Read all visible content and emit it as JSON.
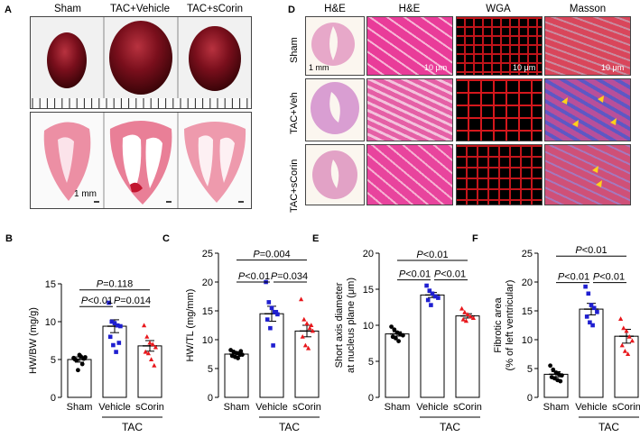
{
  "panel_a": {
    "letter": "A",
    "groups": [
      "Sham",
      "TAC+Vehicle",
      "TAC+sCorin"
    ],
    "scale_label": "1 mm"
  },
  "panel_d": {
    "letter": "D",
    "columns": [
      "H&E",
      "H&E",
      "WGA",
      "Masson"
    ],
    "rows": [
      "Sham",
      "TAC+Veh",
      "TAC+sCorin"
    ],
    "scale_mm": "1 mm",
    "scale_um": "10 μm"
  },
  "colors": {
    "sham": "#000000",
    "vehicle": "#1f1fd0",
    "scorin": "#e8171c"
  },
  "chart_data": [
    {
      "panel": "B",
      "type": "bar",
      "categories": [
        "Sham",
        "Vehicle",
        "sCorin"
      ],
      "group_label": "TAC",
      "ylabel": "HW/BW (mg/g)",
      "ylim": [
        0,
        15
      ],
      "yticks": [
        0,
        5,
        10,
        15
      ],
      "means": [
        5.0,
        9.4,
        6.8
      ],
      "sem": [
        0.35,
        0.85,
        0.7
      ],
      "points": [
        [
          5.2,
          4.9,
          5.6,
          4.4,
          5.3,
          5.0,
          3.6,
          5.4,
          5.1
        ],
        [
          12.5,
          10.0,
          9.8,
          9.5,
          9.4,
          8.0,
          6.9,
          6.0,
          7.2
        ],
        [
          9.5,
          8.0,
          7.2,
          7.0,
          6.6,
          6.0,
          5.8,
          5.0,
          4.2
        ]
      ],
      "pvalues": [
        {
          "label": "P=0.118",
          "from": 0,
          "to": 2,
          "level": 14.2
        },
        {
          "label": "P<0.01",
          "from": 0,
          "to": 1,
          "level": 12.0
        },
        {
          "label": "P=0.014",
          "from": 1,
          "to": 2,
          "level": 12.0
        }
      ]
    },
    {
      "panel": "C",
      "type": "bar",
      "categories": [
        "Sham",
        "Vehicle",
        "sCorin"
      ],
      "group_label": "TAC",
      "ylabel": "HW/TL (mg/mm)",
      "ylim": [
        0,
        25
      ],
      "yticks": [
        0,
        5,
        10,
        15,
        20,
        25
      ],
      "means": [
        7.5,
        14.5,
        11.5
      ],
      "sem": [
        0.4,
        1.3,
        1.0
      ],
      "points": [
        [
          8.2,
          7.9,
          7.7,
          7.5,
          7.4,
          7.2,
          7.0,
          6.8,
          8.0
        ],
        [
          20.0,
          16.5,
          15.5,
          14.8,
          14.4,
          13.5,
          12.0,
          9.0,
          14.8
        ],
        [
          17.0,
          13.5,
          12.8,
          12.0,
          11.5,
          10.5,
          9.0,
          8.5,
          12.5
        ]
      ],
      "pvalues": [
        {
          "label": "P=0.004",
          "from": 0,
          "to": 2,
          "level": 23.8
        },
        {
          "label": "P<0.01",
          "from": 0,
          "to": 1,
          "level": 20.0
        },
        {
          "label": "P=0.034",
          "from": 1,
          "to": 2,
          "level": 20.0
        }
      ]
    },
    {
      "panel": "E",
      "type": "bar",
      "categories": [
        "Sham",
        "Vehicle",
        "sCorin"
      ],
      "group_label": "TAC",
      "ylabel": "Short axis diameter at nucleus plane (μm)",
      "ylim": [
        0,
        20
      ],
      "yticks": [
        0,
        5,
        10,
        15,
        20
      ],
      "means": [
        8.8,
        14.2,
        11.3
      ],
      "sem": [
        0.3,
        0.35,
        0.3
      ],
      "points": [
        [
          9.8,
          9.4,
          9.0,
          8.8,
          8.6,
          8.4,
          8.2,
          7.8
        ],
        [
          15.5,
          14.8,
          14.4,
          14.0,
          13.8,
          13.5,
          12.8
        ],
        [
          12.3,
          11.8,
          11.5,
          11.2,
          11.0,
          10.8,
          10.6
        ]
      ],
      "pvalues": [
        {
          "label": "P<0.01",
          "from": 0,
          "to": 2,
          "level": 19.0
        },
        {
          "label": "P<0.01",
          "from": 0,
          "to": 1,
          "level": 16.3
        },
        {
          "label": "P<0.01",
          "from": 1,
          "to": 2,
          "level": 16.3
        }
      ]
    },
    {
      "panel": "F",
      "type": "bar",
      "categories": [
        "Sham",
        "Vehicle",
        "sCorin"
      ],
      "group_label": "TAC",
      "ylabel": "Fibrotic area (% of left ventricular)",
      "ylim": [
        0,
        25
      ],
      "yticks": [
        0,
        5,
        10,
        15,
        20,
        25
      ],
      "means": [
        4.0,
        15.3,
        10.6
      ],
      "sem": [
        0.45,
        1.0,
        1.2
      ],
      "points": [
        [
          5.5,
          4.8,
          4.3,
          4.0,
          3.8,
          3.5,
          3.3,
          3.0,
          2.8
        ],
        [
          19.2,
          18.0,
          16.0,
          15.5,
          14.8,
          14.0,
          13.0,
          12.5
        ],
        [
          13.6,
          12.0,
          11.5,
          10.5,
          9.8,
          9.0,
          8.0,
          7.5
        ]
      ],
      "pvalues": [
        {
          "label": "P<0.01",
          "from": 0,
          "to": 2,
          "level": 24.5
        },
        {
          "label": "P<0.01",
          "from": 0,
          "to": 1,
          "level": 19.9
        },
        {
          "label": "P<0.01",
          "from": 1,
          "to": 2,
          "level": 19.9
        }
      ]
    }
  ]
}
